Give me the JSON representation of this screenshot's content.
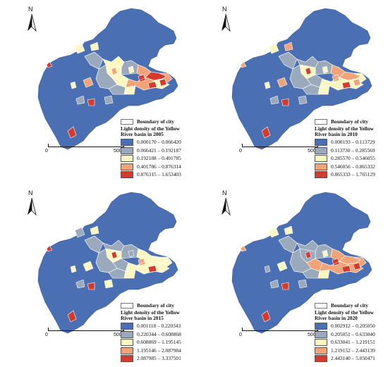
{
  "north_label": "N",
  "scale": {
    "zero": "0",
    "distance": "500 km"
  },
  "boundary_label": "Boundary of city",
  "class_colors": [
    "#4a6fb3",
    "#9aaabc",
    "#fbf7c0",
    "#f2a478",
    "#d43a2e"
  ],
  "panels": [
    {
      "title_line1": "Light density of the Yellow",
      "title_line2": "River basin in 2005",
      "classes": [
        "0.000170 – 0.066420",
        "0.066421 – 0.192187",
        "0.192188 – 0.401785",
        "0.401786 – 0.876314",
        "0.876315 – 1.653403"
      ]
    },
    {
      "title_line1": "Light density of the Yellow",
      "title_line2": "River basin in 2010",
      "classes": [
        "0.000193 – 0.113729",
        "0.113730 – 0.285569",
        "0.285570 – 0.546055",
        "0.546056 – 0.865332",
        "0.865333 – 1.765129"
      ]
    },
    {
      "title_line1": "Light density of the Yellow",
      "title_line2": "River basin in 2015",
      "classes": [
        "0.001118 – 0.220343",
        "0.220344 – 0.608868",
        "0.608869 – 1.195145",
        "1.195146 – 2.087984",
        "2.087985 – 3.337501"
      ]
    },
    {
      "title_line1": "Light density of the Yellow",
      "title_line2": "River basin in 2020",
      "classes": [
        "0.002912 – 0.205050",
        "0.205051 – 0.633040",
        "0.633041 – 1.219151",
        "1.219152 – 2.443139",
        "2.443140 – 5.050471"
      ]
    }
  ]
}
